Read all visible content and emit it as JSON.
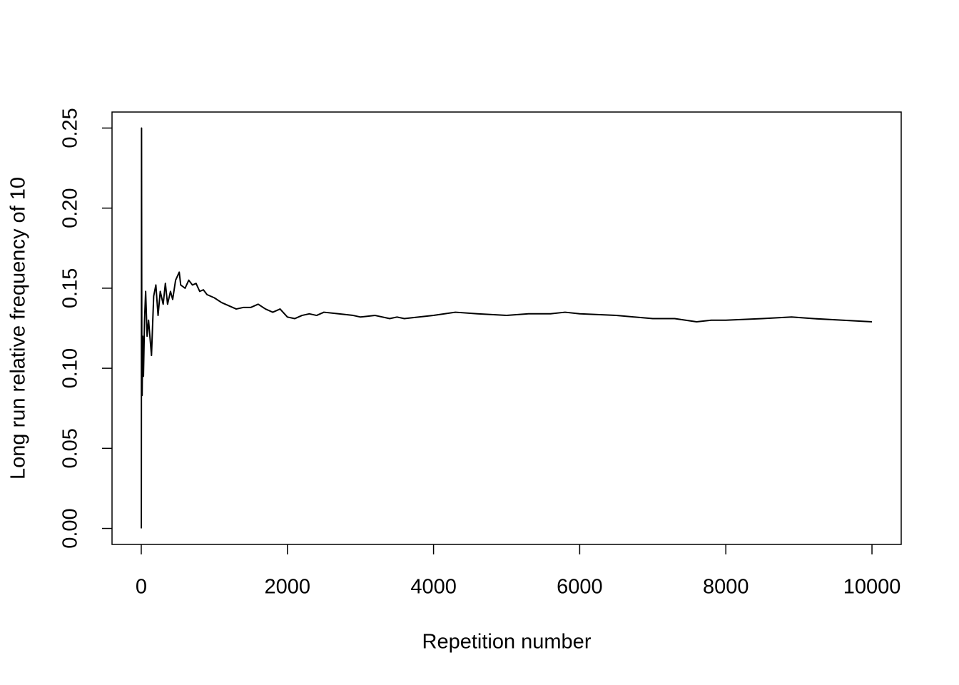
{
  "chart_data": {
    "type": "line",
    "x_label": "Repetition number",
    "y_label": "Long run relative frequency of 10",
    "x": [
      1,
      4,
      5,
      8,
      12,
      20,
      30,
      45,
      60,
      80,
      100,
      140,
      170,
      200,
      230,
      260,
      300,
      330,
      360,
      400,
      430,
      470,
      520,
      540,
      600,
      650,
      700,
      750,
      800,
      850,
      900,
      1000,
      1100,
      1200,
      1300,
      1400,
      1500,
      1600,
      1700,
      1800,
      1900,
      2000,
      2100,
      2200,
      2300,
      2400,
      2500,
      2700,
      2900,
      3000,
      3200,
      3400,
      3500,
      3600,
      3800,
      4000,
      4300,
      4600,
      5000,
      5300,
      5600,
      5800,
      6000,
      6500,
      7000,
      7300,
      7600,
      7800,
      8000,
      8500,
      8900,
      9200,
      9600,
      10000
    ],
    "values": [
      0,
      0.25,
      0.2,
      0.1,
      0.083,
      0.12,
      0.095,
      0.13,
      0.148,
      0.12,
      0.13,
      0.108,
      0.145,
      0.152,
      0.133,
      0.148,
      0.14,
      0.153,
      0.14,
      0.148,
      0.143,
      0.155,
      0.16,
      0.152,
      0.15,
      0.155,
      0.152,
      0.153,
      0.148,
      0.149,
      0.146,
      0.144,
      0.141,
      0.139,
      0.137,
      0.138,
      0.138,
      0.14,
      0.137,
      0.135,
      0.137,
      0.132,
      0.131,
      0.133,
      0.134,
      0.133,
      0.135,
      0.134,
      0.133,
      0.132,
      0.133,
      0.131,
      0.132,
      0.131,
      0.132,
      0.133,
      0.135,
      0.134,
      0.133,
      0.134,
      0.134,
      0.135,
      0.134,
      0.133,
      0.131,
      0.131,
      0.129,
      0.13,
      0.13,
      0.131,
      0.132,
      0.131,
      0.13,
      0.129
    ],
    "color": "#000000",
    "xlim": [
      -400,
      10400
    ],
    "ylim": [
      -0.01,
      0.26
    ],
    "xticks": [
      0,
      2000,
      4000,
      6000,
      8000,
      10000
    ],
    "yticks": [
      {
        "value": 0,
        "label": "0.00"
      },
      {
        "value": 0.05,
        "label": "0.05"
      },
      {
        "value": 0.1,
        "label": "0.10"
      },
      {
        "value": 0.15,
        "label": "0.15"
      },
      {
        "value": 0.2,
        "label": "0.20"
      },
      {
        "value": 0.25,
        "label": "0.25"
      }
    ]
  }
}
